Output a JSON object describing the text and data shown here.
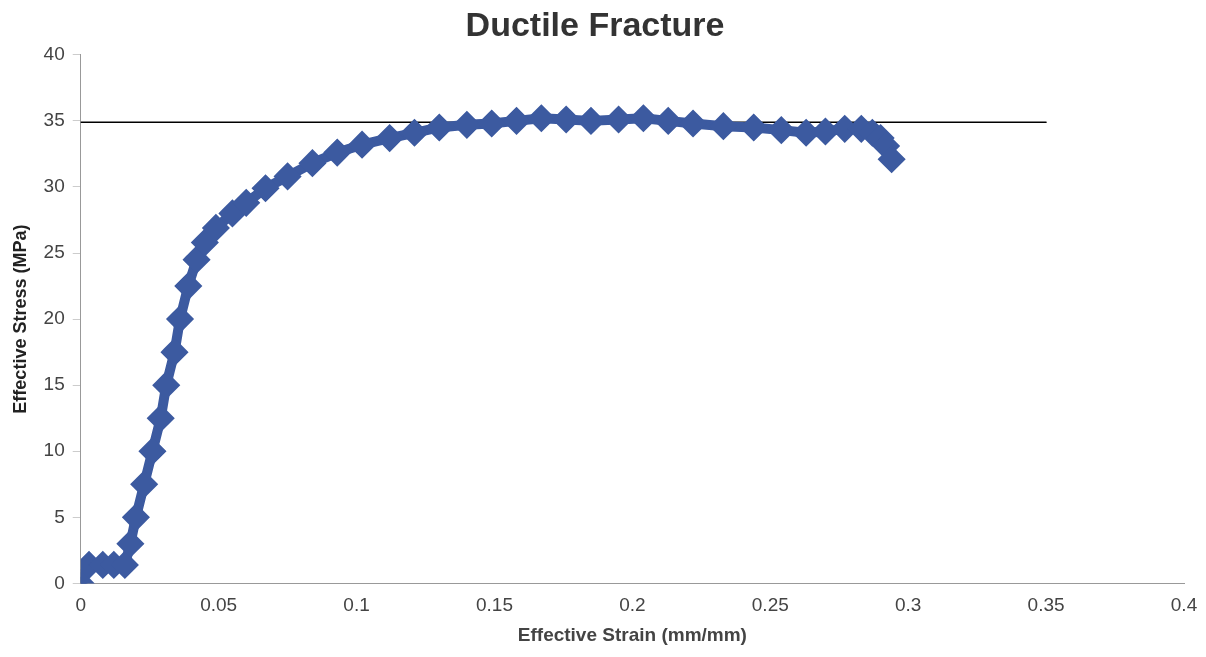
{
  "chart_data": {
    "type": "line",
    "title": "Ductile Fracture",
    "xlabel": "Effective Strain (mm/mm)",
    "ylabel": "Effective Stress (MPa)",
    "xlim": [
      0,
      0.4
    ],
    "xticks": [
      0,
      0.05,
      0.1,
      0.15,
      0.2,
      0.25,
      0.3,
      0.35,
      0.4
    ],
    "ylim": [
      0,
      40
    ],
    "yticks": [
      0,
      5,
      10,
      15,
      20,
      25,
      30,
      35,
      40
    ],
    "grid": false,
    "legend": false,
    "series": [
      {
        "marker": "diamond",
        "color": "#3c5aa0",
        "x": [
          0,
          0.003,
          0.008,
          0.012,
          0.016,
          0.018,
          0.02,
          0.023,
          0.026,
          0.029,
          0.031,
          0.034,
          0.036,
          0.039,
          0.042,
          0.045,
          0.049,
          0.055,
          0.06,
          0.067,
          0.075,
          0.084,
          0.093,
          0.102,
          0.112,
          0.121,
          0.13,
          0.14,
          0.149,
          0.158,
          0.167,
          0.176,
          0.185,
          0.195,
          0.204,
          0.213,
          0.222,
          0.233,
          0.244,
          0.254,
          0.263,
          0.27,
          0.277,
          0.283,
          0.287,
          0.29,
          0.292,
          0.294
        ],
        "values": [
          0,
          1.4,
          1.4,
          1.4,
          1.4,
          3,
          5,
          7.5,
          10,
          12.5,
          15,
          17.5,
          20,
          22.5,
          24.5,
          25.8,
          26.9,
          28,
          28.8,
          29.9,
          30.8,
          31.8,
          32.6,
          33.2,
          33.7,
          34.1,
          34.5,
          34.7,
          34.8,
          35,
          35.2,
          35.1,
          35,
          35.1,
          35.2,
          35,
          34.8,
          34.6,
          34.5,
          34.3,
          34.1,
          34.2,
          34.4,
          34.4,
          34.1,
          33.7,
          33.1,
          32.1
        ]
      },
      {
        "marker": "none",
        "color": "#000000",
        "x": [
          0,
          0.35
        ],
        "values": [
          34.9,
          34.9
        ]
      }
    ]
  }
}
